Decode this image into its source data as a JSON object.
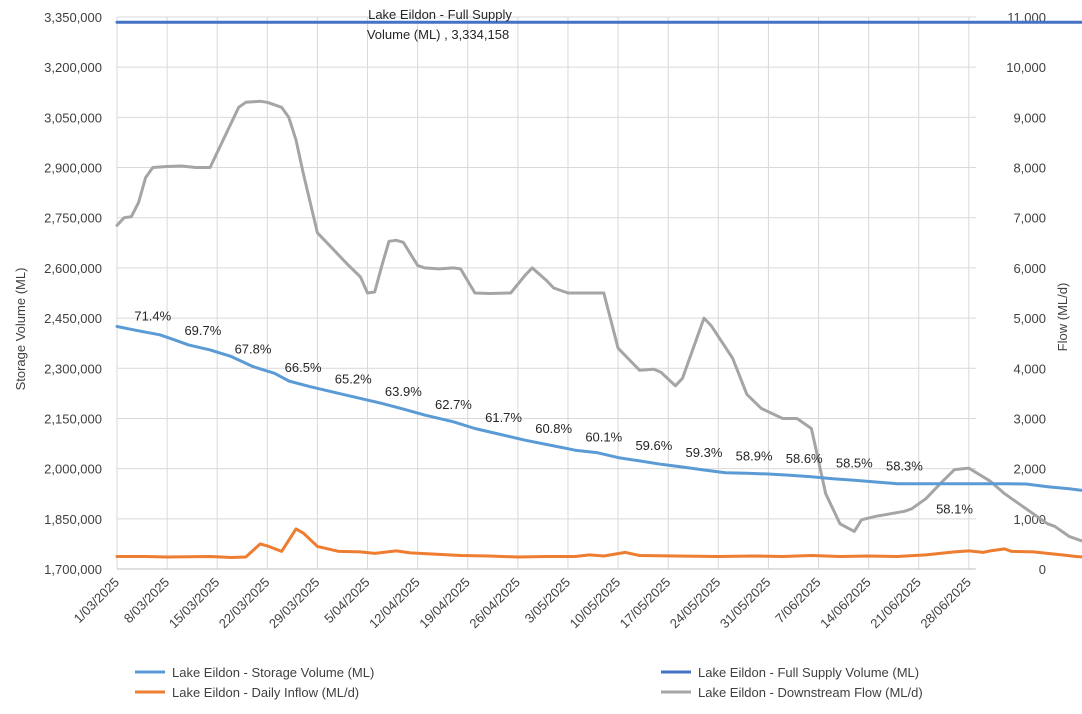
{
  "chart_data": {
    "type": "line",
    "y_left_label": "Storage Volume (ML)",
    "y_right_label": "Flow (ML/d)",
    "y_left_ticks": [
      "1,700,000",
      "1,850,000",
      "2,000,000",
      "2,150,000",
      "2,300,000",
      "2,450,000",
      "2,600,000",
      "2,750,000",
      "2,900,000",
      "3,050,000",
      "3,200,000",
      "3,350,000"
    ],
    "y_right_ticks": [
      "0",
      "1,000",
      "2,000",
      "3,000",
      "4,000",
      "5,000",
      "6,000",
      "7,000",
      "8,000",
      "9,000",
      "10,000",
      "11,000"
    ],
    "ylim_left": [
      1700000,
      3350000
    ],
    "ylim_right": [
      0,
      11000
    ],
    "x_start": "2025-03-01",
    "x_end": "2025-06-29",
    "x_ticks": [
      "1/03/2025",
      "8/03/2025",
      "15/03/2025",
      "22/03/2025",
      "29/03/2025",
      "5/04/2025",
      "12/04/2025",
      "19/04/2025",
      "26/04/2025",
      "3/05/2025",
      "10/05/2025",
      "17/05/2025",
      "24/05/2025",
      "31/05/2025",
      "7/06/2025",
      "14/06/2025",
      "21/06/2025",
      "28/06/2025"
    ],
    "full_supply_label_line1": "Lake Eildon - Full Supply",
    "full_supply_label_line2": "Volume (ML) ,  3,334,158",
    "full_supply_value": 3334158,
    "percent_labels": [
      {
        "date": "2025-03-06",
        "text": "71.4%"
      },
      {
        "date": "2025-03-13",
        "text": "69.7%"
      },
      {
        "date": "2025-03-20",
        "text": "67.8%"
      },
      {
        "date": "2025-03-27",
        "text": "66.5%"
      },
      {
        "date": "2025-04-03",
        "text": "65.2%"
      },
      {
        "date": "2025-04-10",
        "text": "63.9%"
      },
      {
        "date": "2025-04-17",
        "text": "62.7%"
      },
      {
        "date": "2025-04-24",
        "text": "61.7%"
      },
      {
        "date": "2025-05-01",
        "text": "60.8%"
      },
      {
        "date": "2025-05-08",
        "text": "60.1%"
      },
      {
        "date": "2025-05-15",
        "text": "59.6%"
      },
      {
        "date": "2025-05-22",
        "text": "59.3%"
      },
      {
        "date": "2025-05-29",
        "text": "58.9%"
      },
      {
        "date": "2025-06-05",
        "text": "58.6%"
      },
      {
        "date": "2025-06-12",
        "text": "58.5%"
      },
      {
        "date": "2025-06-19",
        "text": "58.3%"
      },
      {
        "date": "2025-06-26",
        "text": "58.1%"
      }
    ],
    "series": [
      {
        "name": "Lake Eildon - Storage Volume (ML)",
        "axis": "left",
        "color": "#5B9BD5",
        "points": [
          [
            "2025-03-01",
            2425000
          ],
          [
            "2025-03-04",
            2412000
          ],
          [
            "2025-03-07",
            2400000
          ],
          [
            "2025-03-09",
            2385000
          ],
          [
            "2025-03-11",
            2370000
          ],
          [
            "2025-03-14",
            2355000
          ],
          [
            "2025-03-17",
            2335000
          ],
          [
            "2025-03-20",
            2305000
          ],
          [
            "2025-03-23",
            2285000
          ],
          [
            "2025-03-25",
            2262000
          ],
          [
            "2025-03-28",
            2245000
          ],
          [
            "2025-04-01",
            2225000
          ],
          [
            "2025-04-04",
            2210000
          ],
          [
            "2025-04-07",
            2195000
          ],
          [
            "2025-04-10",
            2178000
          ],
          [
            "2025-04-13",
            2160000
          ],
          [
            "2025-04-17",
            2140000
          ],
          [
            "2025-04-20",
            2120000
          ],
          [
            "2025-04-23",
            2105000
          ],
          [
            "2025-04-27",
            2085000
          ],
          [
            "2025-05-01",
            2068000
          ],
          [
            "2025-05-04",
            2055000
          ],
          [
            "2025-05-07",
            2048000
          ],
          [
            "2025-05-10",
            2033000
          ],
          [
            "2025-05-13",
            2023000
          ],
          [
            "2025-05-16",
            2013000
          ],
          [
            "2025-05-19",
            2005000
          ],
          [
            "2025-05-22",
            1996000
          ],
          [
            "2025-05-25",
            1988000
          ],
          [
            "2025-05-28",
            1986000
          ],
          [
            "2025-05-31",
            1984000
          ],
          [
            "2025-06-03",
            1980000
          ],
          [
            "2025-06-06",
            1976000
          ],
          [
            "2025-06-09",
            1970000
          ],
          [
            "2025-06-12",
            1965000
          ],
          [
            "2025-06-15",
            1960000
          ],
          [
            "2025-06-18",
            1955000
          ],
          [
            "2025-06-21",
            1955000
          ],
          [
            "2025-06-24",
            1955000
          ],
          [
            "2025-06-27",
            1955000
          ],
          [
            "2025-06-30",
            1955000
          ],
          [
            "2025-07-03",
            1955000
          ],
          [
            "2025-07-06",
            1954000
          ],
          [
            "2025-07-09",
            1946000
          ],
          [
            "2025-07-12",
            1940000
          ],
          [
            "2025-07-15",
            1932000
          ],
          [
            "2025-07-18",
            1938000
          ]
        ]
      },
      {
        "name": "Lake Eildon - Full Supply Volume (ML)",
        "axis": "left",
        "color": "#4472C4",
        "points": [
          [
            "2025-03-01",
            3334158
          ],
          [
            "2025-07-18",
            3334158
          ]
        ]
      },
      {
        "name": "Lake Eildon - Daily Inflow (ML/d)",
        "axis": "right",
        "color": "#ED7D31",
        "points": [
          [
            "2025-03-01",
            250
          ],
          [
            "2025-03-05",
            250
          ],
          [
            "2025-03-08",
            240
          ],
          [
            "2025-03-14",
            250
          ],
          [
            "2025-03-17",
            230
          ],
          [
            "2025-03-19",
            240
          ],
          [
            "2025-03-21",
            500
          ],
          [
            "2025-03-22",
            460
          ],
          [
            "2025-03-24",
            350
          ],
          [
            "2025-03-26",
            800
          ],
          [
            "2025-03-27",
            720
          ],
          [
            "2025-03-29",
            450
          ],
          [
            "2025-04-01",
            350
          ],
          [
            "2025-04-04",
            340
          ],
          [
            "2025-04-06",
            310
          ],
          [
            "2025-04-09",
            360
          ],
          [
            "2025-04-11",
            320
          ],
          [
            "2025-04-15",
            290
          ],
          [
            "2025-04-18",
            270
          ],
          [
            "2025-04-22",
            260
          ],
          [
            "2025-04-26",
            240
          ],
          [
            "2025-04-30",
            250
          ],
          [
            "2025-05-04",
            250
          ],
          [
            "2025-05-06",
            280
          ],
          [
            "2025-05-08",
            260
          ],
          [
            "2025-05-11",
            330
          ],
          [
            "2025-05-13",
            270
          ],
          [
            "2025-05-18",
            260
          ],
          [
            "2025-05-24",
            250
          ],
          [
            "2025-05-29",
            260
          ],
          [
            "2025-06-02",
            250
          ],
          [
            "2025-06-06",
            270
          ],
          [
            "2025-06-10",
            250
          ],
          [
            "2025-06-14",
            260
          ],
          [
            "2025-06-18",
            250
          ],
          [
            "2025-06-22",
            280
          ],
          [
            "2025-06-26",
            340
          ],
          [
            "2025-06-28",
            360
          ],
          [
            "2025-06-30",
            330
          ],
          [
            "2025-07-01",
            360
          ],
          [
            "2025-07-03",
            400
          ],
          [
            "2025-07-04",
            350
          ],
          [
            "2025-07-07",
            340
          ],
          [
            "2025-07-09",
            310
          ],
          [
            "2025-07-11",
            280
          ],
          [
            "2025-07-13",
            250
          ],
          [
            "2025-07-15",
            230
          ],
          [
            "2025-07-17",
            280
          ],
          [
            "2025-07-18",
            650
          ],
          [
            "2025-07-19",
            580
          ],
          [
            "2025-07-20",
            400
          ],
          [
            "2025-07-22",
            300
          ]
        ]
      },
      {
        "name": "Lake Eildon - Downstream Flow (ML/d)",
        "axis": "right",
        "color": "#A5A5A5",
        "points": [
          [
            "2025-03-01",
            6850
          ],
          [
            "2025-03-02",
            7000
          ],
          [
            "2025-03-03",
            7020
          ],
          [
            "2025-03-04",
            7300
          ],
          [
            "2025-03-05",
            7800
          ],
          [
            "2025-03-06",
            8000
          ],
          [
            "2025-03-08",
            8020
          ],
          [
            "2025-03-10",
            8030
          ],
          [
            "2025-03-12",
            8000
          ],
          [
            "2025-03-14",
            8000
          ],
          [
            "2025-03-15",
            8300
          ],
          [
            "2025-03-17",
            8900
          ],
          [
            "2025-03-18",
            9200
          ],
          [
            "2025-03-19",
            9300
          ],
          [
            "2025-03-21",
            9320
          ],
          [
            "2025-03-22",
            9300
          ],
          [
            "2025-03-24",
            9200
          ],
          [
            "2025-03-25",
            9000
          ],
          [
            "2025-03-26",
            8550
          ],
          [
            "2025-03-27",
            7900
          ],
          [
            "2025-03-29",
            6700
          ],
          [
            "2025-03-31",
            6400
          ],
          [
            "2025-04-02",
            6100
          ],
          [
            "2025-04-04",
            5820
          ],
          [
            "2025-04-05",
            5500
          ],
          [
            "2025-04-06",
            5520
          ],
          [
            "2025-04-07",
            6050
          ],
          [
            "2025-04-08",
            6530
          ],
          [
            "2025-04-09",
            6550
          ],
          [
            "2025-04-10",
            6510
          ],
          [
            "2025-04-12",
            6050
          ],
          [
            "2025-04-13",
            6000
          ],
          [
            "2025-04-15",
            5980
          ],
          [
            "2025-04-17",
            6000
          ],
          [
            "2025-04-18",
            5980
          ],
          [
            "2025-04-20",
            5500
          ],
          [
            "2025-04-22",
            5490
          ],
          [
            "2025-04-25",
            5500
          ],
          [
            "2025-04-27",
            5850
          ],
          [
            "2025-04-28",
            6000
          ],
          [
            "2025-04-30",
            5750
          ],
          [
            "2025-05-01",
            5600
          ],
          [
            "2025-05-03",
            5500
          ],
          [
            "2025-05-05",
            5500
          ],
          [
            "2025-05-08",
            5500
          ],
          [
            "2025-05-10",
            4400
          ],
          [
            "2025-05-13",
            3960
          ],
          [
            "2025-05-15",
            3980
          ],
          [
            "2025-05-16",
            3920
          ],
          [
            "2025-05-18",
            3650
          ],
          [
            "2025-05-19",
            3800
          ],
          [
            "2025-05-21",
            4600
          ],
          [
            "2025-05-22",
            5000
          ],
          [
            "2025-05-23",
            4850
          ],
          [
            "2025-05-26",
            4200
          ],
          [
            "2025-05-28",
            3480
          ],
          [
            "2025-05-30",
            3200
          ],
          [
            "2025-06-02",
            3000
          ],
          [
            "2025-06-04",
            3000
          ],
          [
            "2025-06-06",
            2800
          ],
          [
            "2025-06-08",
            1500
          ],
          [
            "2025-06-10",
            900
          ],
          [
            "2025-06-12",
            750
          ],
          [
            "2025-06-13",
            980
          ],
          [
            "2025-06-15",
            1050
          ],
          [
            "2025-06-17",
            1100
          ],
          [
            "2025-06-19",
            1150
          ],
          [
            "2025-06-20",
            1200
          ],
          [
            "2025-06-22",
            1400
          ],
          [
            "2025-06-24",
            1700
          ],
          [
            "2025-06-26",
            1980
          ],
          [
            "2025-06-28",
            2010
          ],
          [
            "2025-07-01",
            1750
          ],
          [
            "2025-07-03",
            1500
          ],
          [
            "2025-07-05",
            1300
          ],
          [
            "2025-07-07",
            1100
          ],
          [
            "2025-07-09",
            900
          ],
          [
            "2025-07-10",
            850
          ],
          [
            "2025-07-12",
            650
          ],
          [
            "2025-07-14",
            550
          ],
          [
            "2025-07-16",
            500
          ],
          [
            "2025-07-18",
            480
          ],
          [
            "2025-07-20",
            650
          ],
          [
            "2025-07-23",
            900
          ],
          [
            "2025-07-25",
            2100
          ],
          [
            "2025-07-26",
            4000
          ],
          [
            "2025-07-27",
            4010
          ],
          [
            "2025-07-29",
            3500
          ],
          [
            "2025-07-30",
            1200
          ],
          [
            "2025-08-01",
            1900
          ],
          [
            "2025-08-03",
            1800
          ],
          [
            "2025-08-05",
            1580
          ],
          [
            "2025-08-07",
            2700
          ],
          [
            "2025-08-09",
            5000
          ]
        ]
      }
    ]
  }
}
